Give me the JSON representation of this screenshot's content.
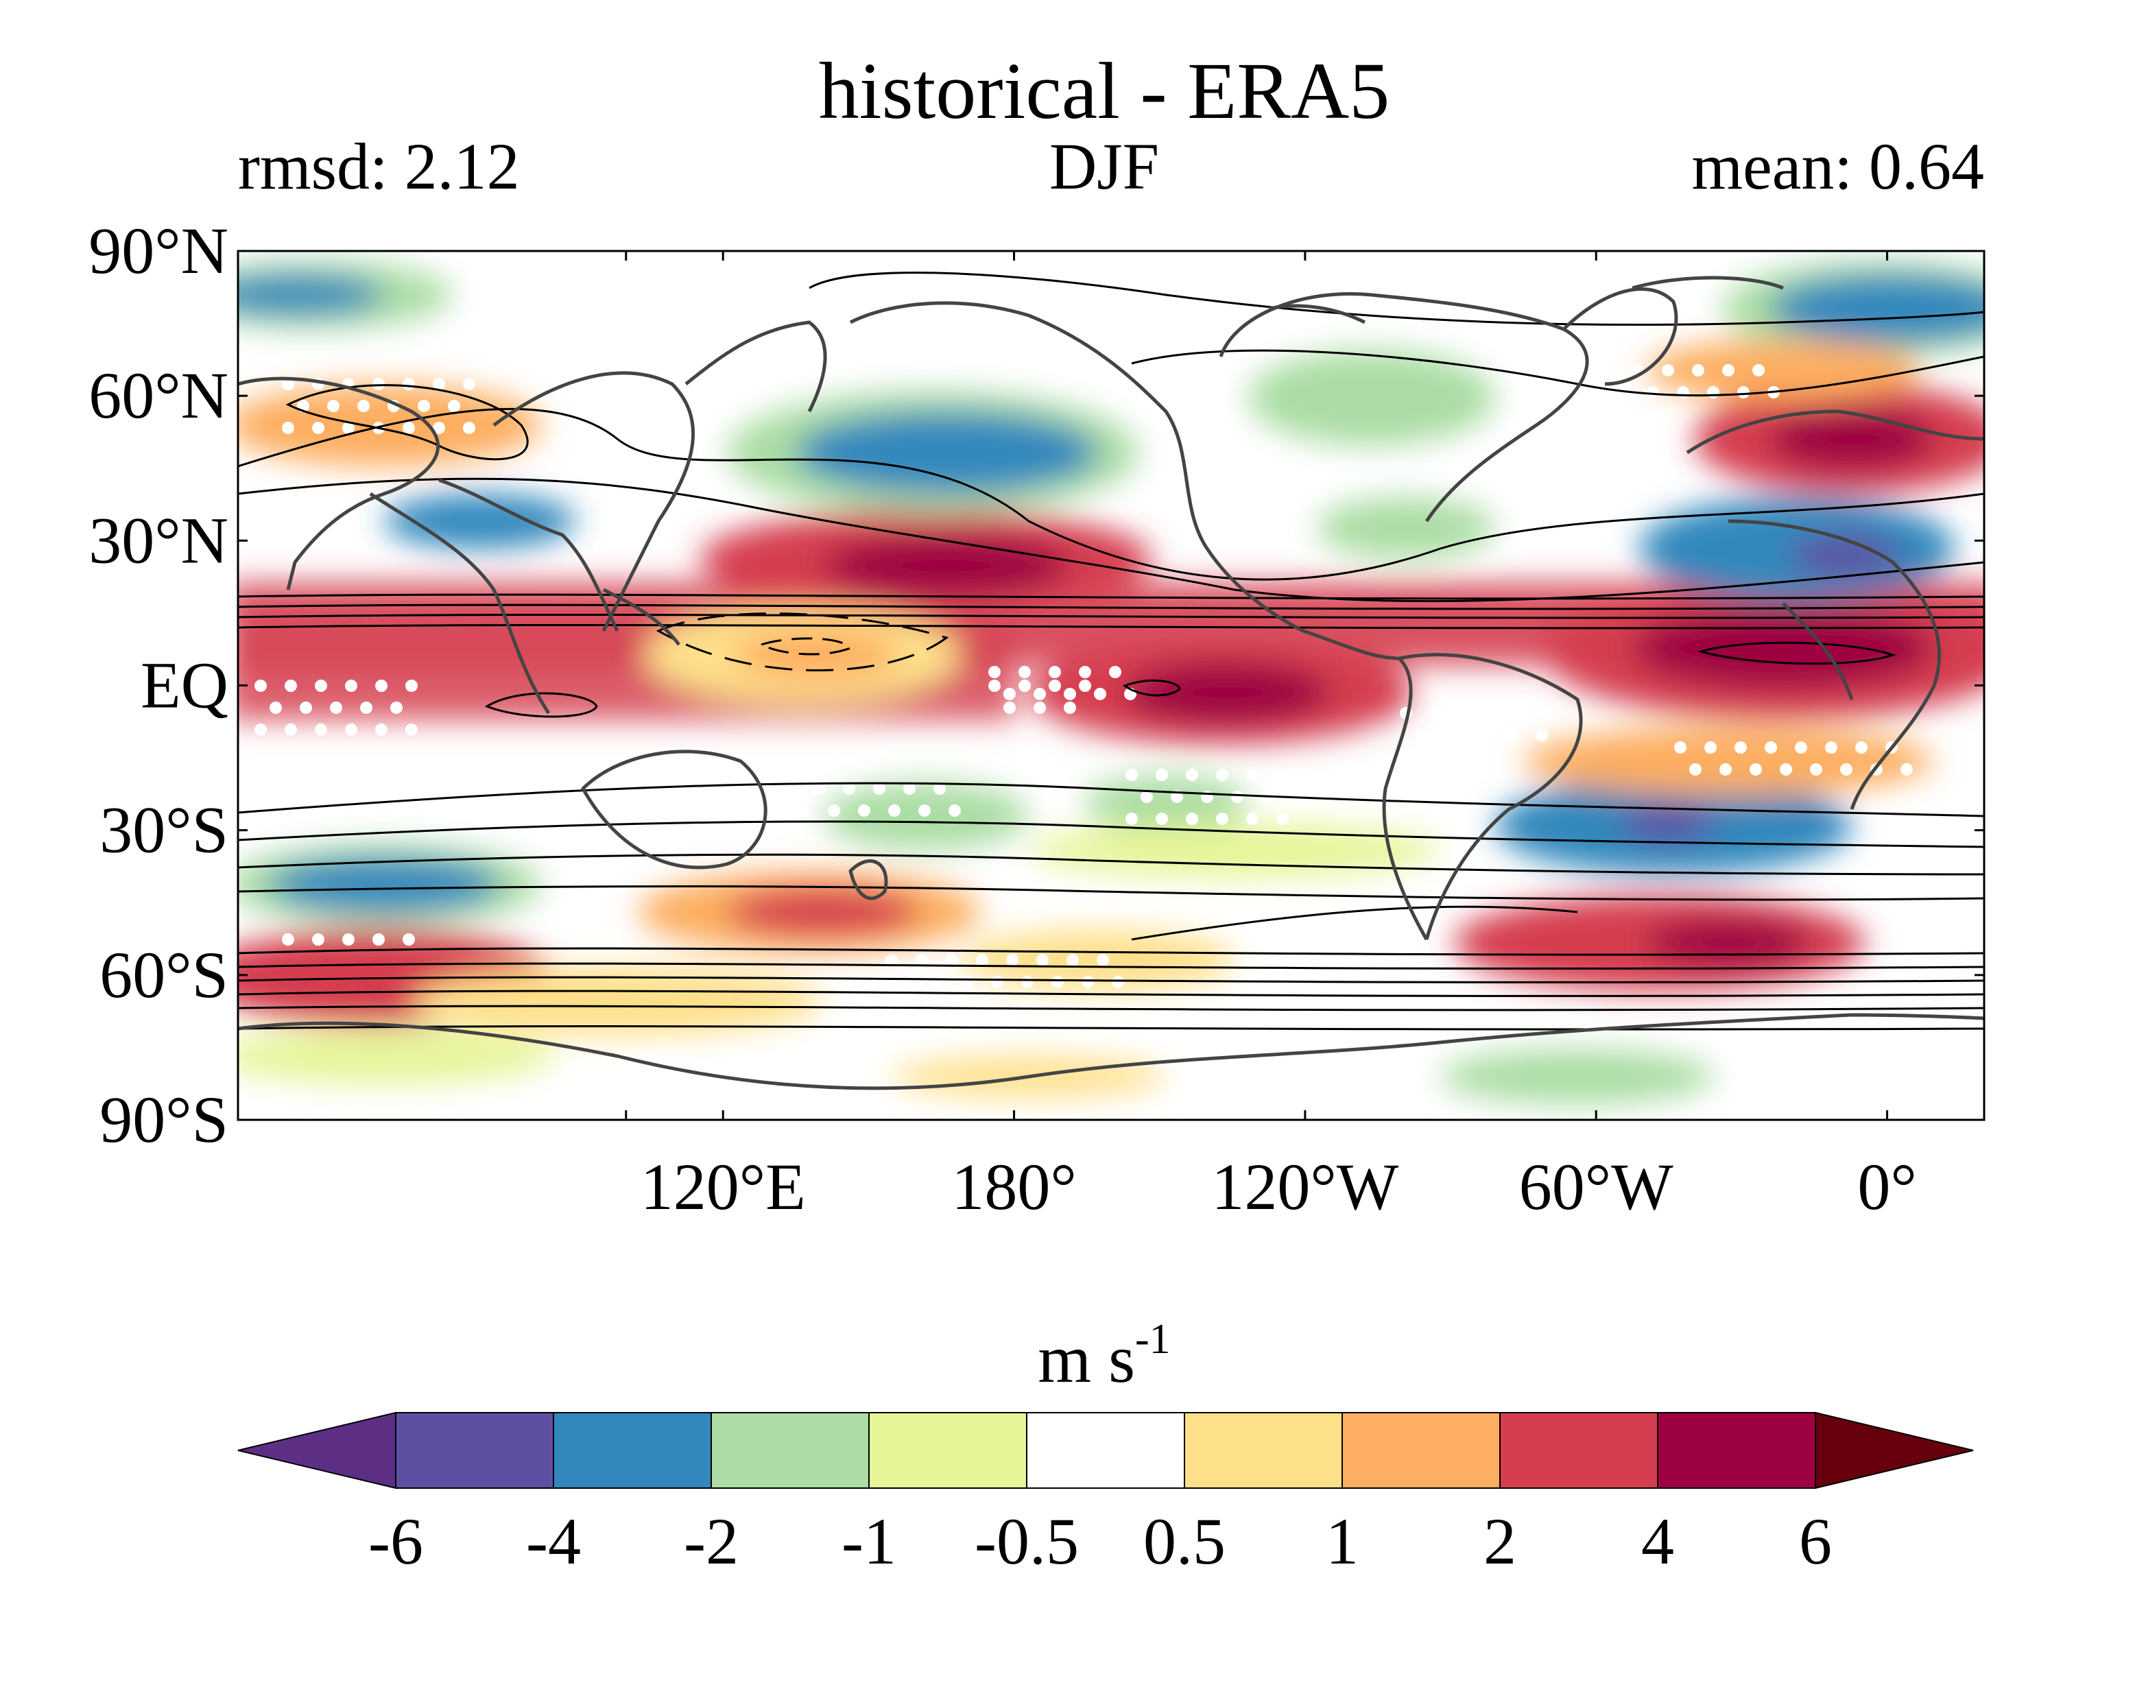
{
  "figure": {
    "title": "historical - ERA5",
    "season": "DJF",
    "rmsd_label": "rmsd: 2.12",
    "mean_label": "mean: 0.64"
  },
  "map": {
    "projection": "equirectangular",
    "lon_range": [
      20,
      380
    ],
    "lat_range": [
      -90,
      90
    ],
    "lat_ticks": [
      {
        "lat": 90,
        "label": "90°N"
      },
      {
        "lat": 60,
        "label": "60°N"
      },
      {
        "lat": 30,
        "label": "30°N"
      },
      {
        "lat": 0,
        "label": "EQ"
      },
      {
        "lat": -30,
        "label": "30°S"
      },
      {
        "lat": -60,
        "label": "60°S"
      },
      {
        "lat": -90,
        "label": "90°S"
      }
    ],
    "lon_ticks": [
      {
        "lon": 100,
        "label": ""
      },
      {
        "lon": 120,
        "label": "120°E"
      },
      {
        "lon": 180,
        "label": "180°"
      },
      {
        "lon": 240,
        "label": "120°W"
      },
      {
        "lon": 300,
        "label": "60°W"
      },
      {
        "lon": 360,
        "label": "0°"
      }
    ],
    "coastline_color": "#444444",
    "contour_color": "#000000",
    "stipple_color": "#ffffff"
  },
  "chart_data": {
    "type": "heatmap",
    "title": "historical - ERA5",
    "units": "m s-1",
    "levels": [
      -6,
      -4,
      -2,
      -1,
      -0.5,
      0.5,
      1,
      2,
      4,
      6
    ],
    "colors": [
      "#5c2f85",
      "#5e4fa2",
      "#3288bd",
      "#abdda4",
      "#e6f598",
      "#ffffff",
      "#fee08b",
      "#fdae61",
      "#d53e4f",
      "#9e0142",
      "#67000d"
    ],
    "extend": "both",
    "anomaly_features": [
      {
        "lon": 185,
        "lat": 23,
        "value": 5.5
      },
      {
        "lon": 150,
        "lat": 18,
        "value": 3
      },
      {
        "lon": 45,
        "lat": 15,
        "value": 3
      },
      {
        "lon": 230,
        "lat": 0,
        "value": 5
      },
      {
        "lon": 355,
        "lat": 8,
        "value": 5
      },
      {
        "lon": 205,
        "lat": 45,
        "value": -3.5
      },
      {
        "lon": 355,
        "lat": 30,
        "value": -3.5
      },
      {
        "lon": 340,
        "lat": -30,
        "value": -3.5
      },
      {
        "lon": 55,
        "lat": -43,
        "value": -3
      },
      {
        "lon": 30,
        "lat": 83,
        "value": -3
      },
      {
        "lon": 365,
        "lat": 78,
        "value": -3
      },
      {
        "lon": 365,
        "lat": 52,
        "value": 4
      },
      {
        "lon": 55,
        "lat": -62,
        "value": 3.5
      },
      {
        "lon": 330,
        "lat": -55,
        "value": 3.5
      },
      {
        "lon": 155,
        "lat": -48,
        "value": 2.5
      },
      {
        "lon": 165,
        "lat": 10,
        "value": -0.8
      }
    ]
  },
  "colorbar": {
    "units_base": "m s",
    "units_exp": "-1",
    "tick_labels": [
      "-6",
      "-4",
      "-2",
      "-1",
      "-0.5",
      "0.5",
      "1",
      "2",
      "4",
      "6"
    ]
  }
}
